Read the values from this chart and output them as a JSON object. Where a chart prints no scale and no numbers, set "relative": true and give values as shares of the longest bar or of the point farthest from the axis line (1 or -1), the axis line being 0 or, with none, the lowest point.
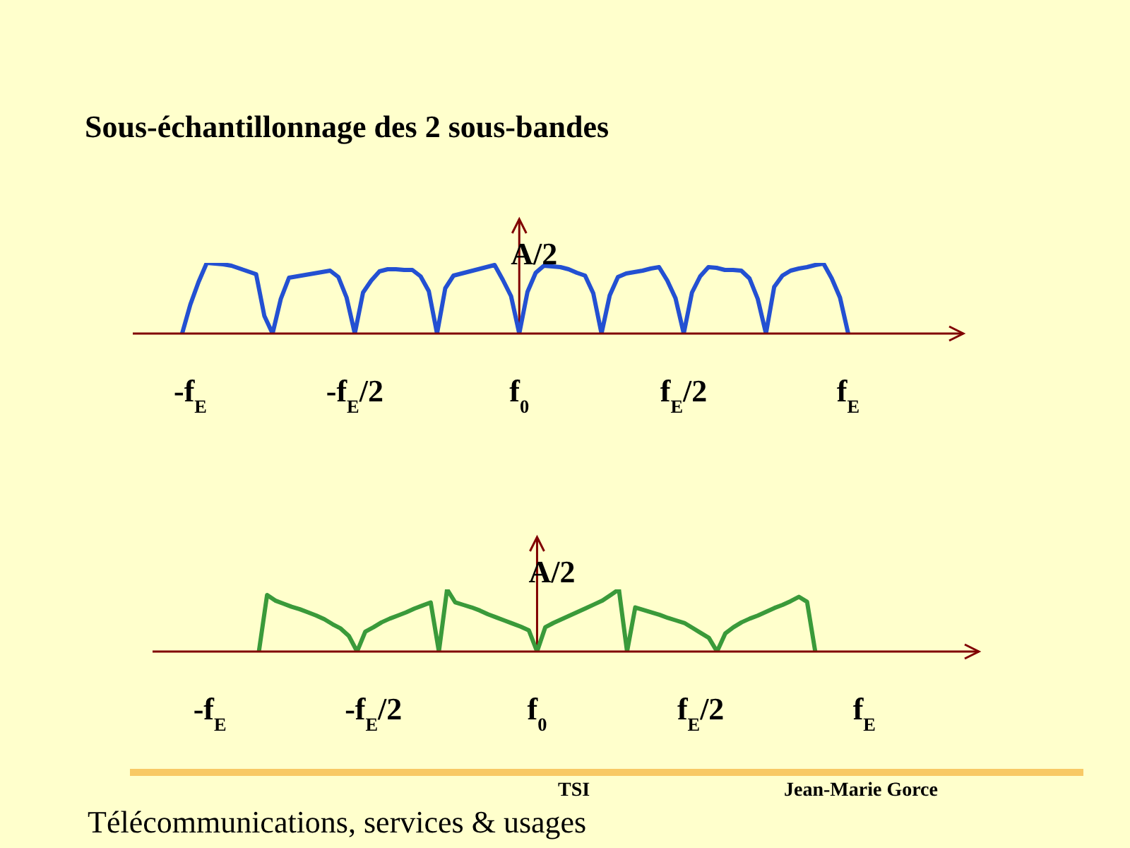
{
  "chart_data": [
    {
      "type": "line",
      "title": "Sous-échantillonnage des 2 sous-bandes",
      "ylabel": "A/2",
      "relative": true,
      "color": "#2350d2",
      "categories": [
        null,
        null,
        null,
        null,
        null,
        null,
        null,
        "-f$_{E}$",
        null,
        null,
        null,
        null,
        null,
        null,
        null,
        null,
        null,
        null,
        null,
        null,
        null,
        null,
        null,
        null,
        null,
        null,
        null,
        "-f$_{E}$/2",
        null,
        null,
        null,
        null,
        null,
        null,
        null,
        null,
        null,
        null,
        null,
        null,
        null,
        null,
        null,
        null,
        null,
        null,
        null,
        "f$_{0}$",
        null,
        null,
        null,
        null,
        null,
        null,
        null,
        null,
        null,
        null,
        null,
        null,
        null,
        null,
        null,
        null,
        null,
        null,
        null,
        "f$_{E}$/2",
        null,
        null,
        null,
        null,
        null,
        null,
        null,
        null,
        null,
        null,
        null,
        null,
        null,
        null,
        null,
        null,
        null,
        null,
        null,
        "f$_{E}$",
        null,
        null,
        null,
        null,
        null,
        null,
        null,
        null,
        null,
        null,
        null,
        null,
        null,
        null
      ],
      "ref_lines": [
        {
          "axis": "x",
          "value": "f$_{0}$",
          "color": "#800000"
        }
      ],
      "values": [
        null,
        null,
        null,
        null,
        null,
        null,
        0,
        0.41,
        0.73,
        1,
        0.99,
        0.98,
        0.96,
        0.92,
        0.88,
        0.84,
        0.25,
        0,
        0.49,
        0.79,
        0.81,
        0.83,
        0.85,
        0.87,
        0.89,
        0.8,
        0.51,
        0,
        0.58,
        0.75,
        0.88,
        0.91,
        0.91,
        0.9,
        0.9,
        0.81,
        0.6,
        0,
        0.64,
        0.82,
        0.85,
        0.88,
        0.91,
        0.94,
        0.97,
        0.76,
        0.53,
        0,
        0.59,
        0.86,
        0.96,
        0.95,
        0.94,
        0.91,
        0.86,
        0.82,
        0.57,
        0,
        0.54,
        0.8,
        0.85,
        0.87,
        0.89,
        0.92,
        0.94,
        0.75,
        0.5,
        0,
        0.58,
        0.81,
        0.94,
        0.93,
        0.9,
        0.9,
        0.89,
        0.78,
        0.49,
        0,
        0.66,
        0.82,
        0.89,
        0.92,
        0.94,
        0.97,
        0.99,
        0.78,
        0.51,
        0,
        null,
        null,
        null,
        null,
        null,
        null,
        null,
        null,
        null,
        null,
        null,
        null,
        null,
        null
      ]
    },
    {
      "type": "line",
      "ylabel": "A/2",
      "relative": true,
      "color": "#3a9a3a",
      "categories": [
        null,
        null,
        null,
        null,
        null,
        null,
        null,
        "-f$_{E}$",
        null,
        null,
        null,
        null,
        null,
        null,
        null,
        null,
        null,
        null,
        null,
        null,
        null,
        null,
        null,
        null,
        null,
        null,
        null,
        "-f$_{E}$/2",
        null,
        null,
        null,
        null,
        null,
        null,
        null,
        null,
        null,
        null,
        null,
        null,
        null,
        null,
        null,
        null,
        null,
        null,
        null,
        "f$_{0}$",
        null,
        null,
        null,
        null,
        null,
        null,
        null,
        null,
        null,
        null,
        null,
        null,
        null,
        null,
        null,
        null,
        null,
        null,
        null,
        "f$_{E}$/2",
        null,
        null,
        null,
        null,
        null,
        null,
        null,
        null,
        null,
        null,
        null,
        null,
        null,
        null,
        null,
        null,
        null,
        null,
        null,
        "f$_{E}$",
        null,
        null,
        null,
        null,
        null,
        null,
        null,
        null,
        null,
        null,
        null,
        null,
        null,
        null
      ],
      "ref_lines": [
        {
          "axis": "x",
          "value": "f$_{0}$",
          "color": "#800000"
        }
      ],
      "values": [
        null,
        null,
        null,
        null,
        null,
        null,
        null,
        null,
        null,
        null,
        null,
        null,
        null,
        0,
        0.91,
        0.82,
        0.77,
        0.72,
        0.68,
        0.63,
        0.58,
        0.52,
        0.44,
        0.37,
        0.25,
        0,
        0.32,
        0.39,
        0.47,
        0.53,
        0.58,
        0.63,
        0.69,
        0.74,
        0.79,
        0,
        1,
        0.79,
        0.75,
        0.71,
        0.66,
        0.6,
        0.55,
        0.5,
        0.45,
        0.4,
        0.34,
        0,
        0.39,
        0.46,
        0.52,
        0.58,
        0.64,
        0.7,
        0.76,
        0.82,
        0.91,
        1,
        0,
        0.71,
        0.67,
        0.63,
        0.59,
        0.54,
        0.5,
        0.46,
        0.38,
        0.3,
        0.22,
        0,
        0.29,
        0.39,
        0.47,
        0.53,
        0.58,
        0.64,
        0.7,
        0.75,
        0.81,
        0.88,
        0.8,
        0,
        null,
        null,
        null,
        null,
        null,
        null,
        null,
        null,
        null,
        null,
        null,
        null,
        null,
        null,
        null,
        null,
        null,
        null,
        null,
        null
      ],
      "annotations": [
        "TSI",
        "Jean-Marie Gorce",
        "Télécommunications, services & usages"
      ]
    }
  ]
}
